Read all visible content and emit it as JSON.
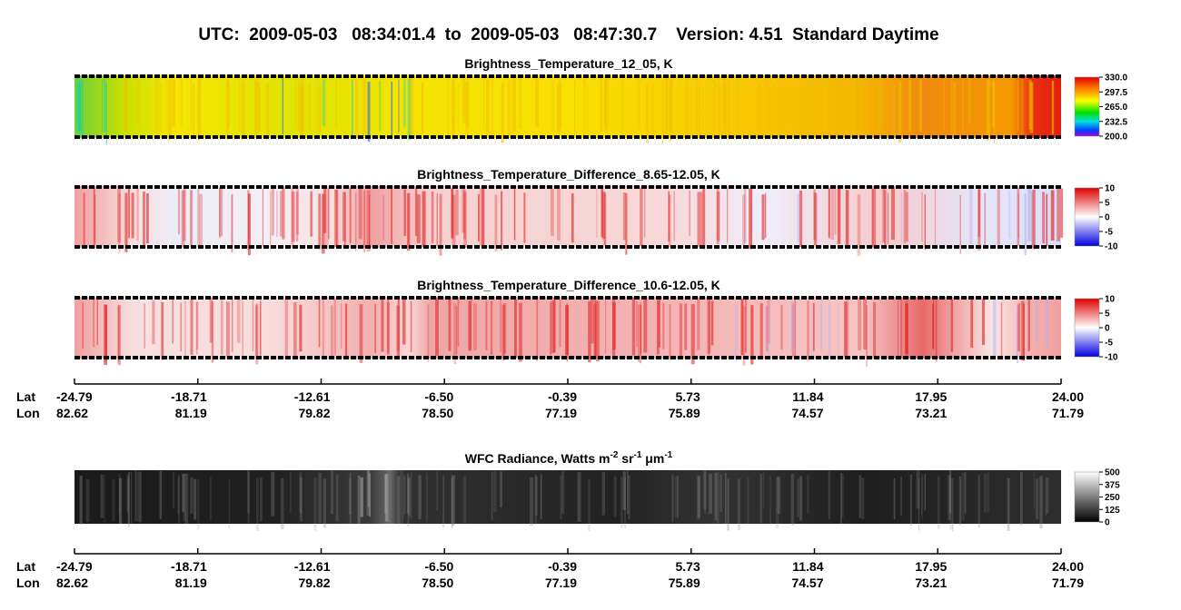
{
  "header": {
    "title": "UTC:  2009-05-03   08:34:01.4  to  2009-05-03   08:47:30.7    Version: 4.51  Standard Daytime"
  },
  "panels": [
    {
      "title": "Brightness_Temperature_12_05, K",
      "colorbar": [
        "330.0",
        "297.5",
        "265.0",
        "232.5",
        "200.0"
      ]
    },
    {
      "title": "Brightness_Temperature_Difference_8.65-12.05, K",
      "colorbar": [
        "10",
        "5",
        "0",
        "-5",
        "-10"
      ]
    },
    {
      "title": "Brightness_Temperature_Difference_10.6-12.05, K",
      "colorbar": [
        "10",
        "5",
        "0",
        "-5",
        "-10"
      ]
    },
    {
      "title_parts": [
        "WFC Radiance, Watts m",
        "-2",
        " sr",
        "-1",
        " μm",
        "-1"
      ],
      "colorbar": [
        "500",
        "375",
        "250",
        "125",
        "0"
      ]
    }
  ],
  "axes": [
    {
      "row_labels": [
        "Lat",
        "Lon"
      ],
      "lat": [
        "-24.79",
        "-18.71",
        "-12.61",
        "-6.50",
        "-0.39",
        "5.73",
        "11.84",
        "17.95",
        "24.00"
      ],
      "lon": [
        "82.62",
        "81.19",
        "79.82",
        "78.50",
        "77.19",
        "75.89",
        "74.57",
        "73.21",
        "71.79"
      ]
    },
    {
      "row_labels": [
        "Lat",
        "Lon"
      ],
      "lat": [
        "-24.79",
        "-18.71",
        "-12.61",
        "-6.50",
        "-0.39",
        "5.73",
        "11.84",
        "17.95",
        "24.00"
      ],
      "lon": [
        "82.62",
        "81.19",
        "79.82",
        "78.50",
        "77.19",
        "75.89",
        "74.57",
        "73.21",
        "71.79"
      ]
    }
  ]
}
